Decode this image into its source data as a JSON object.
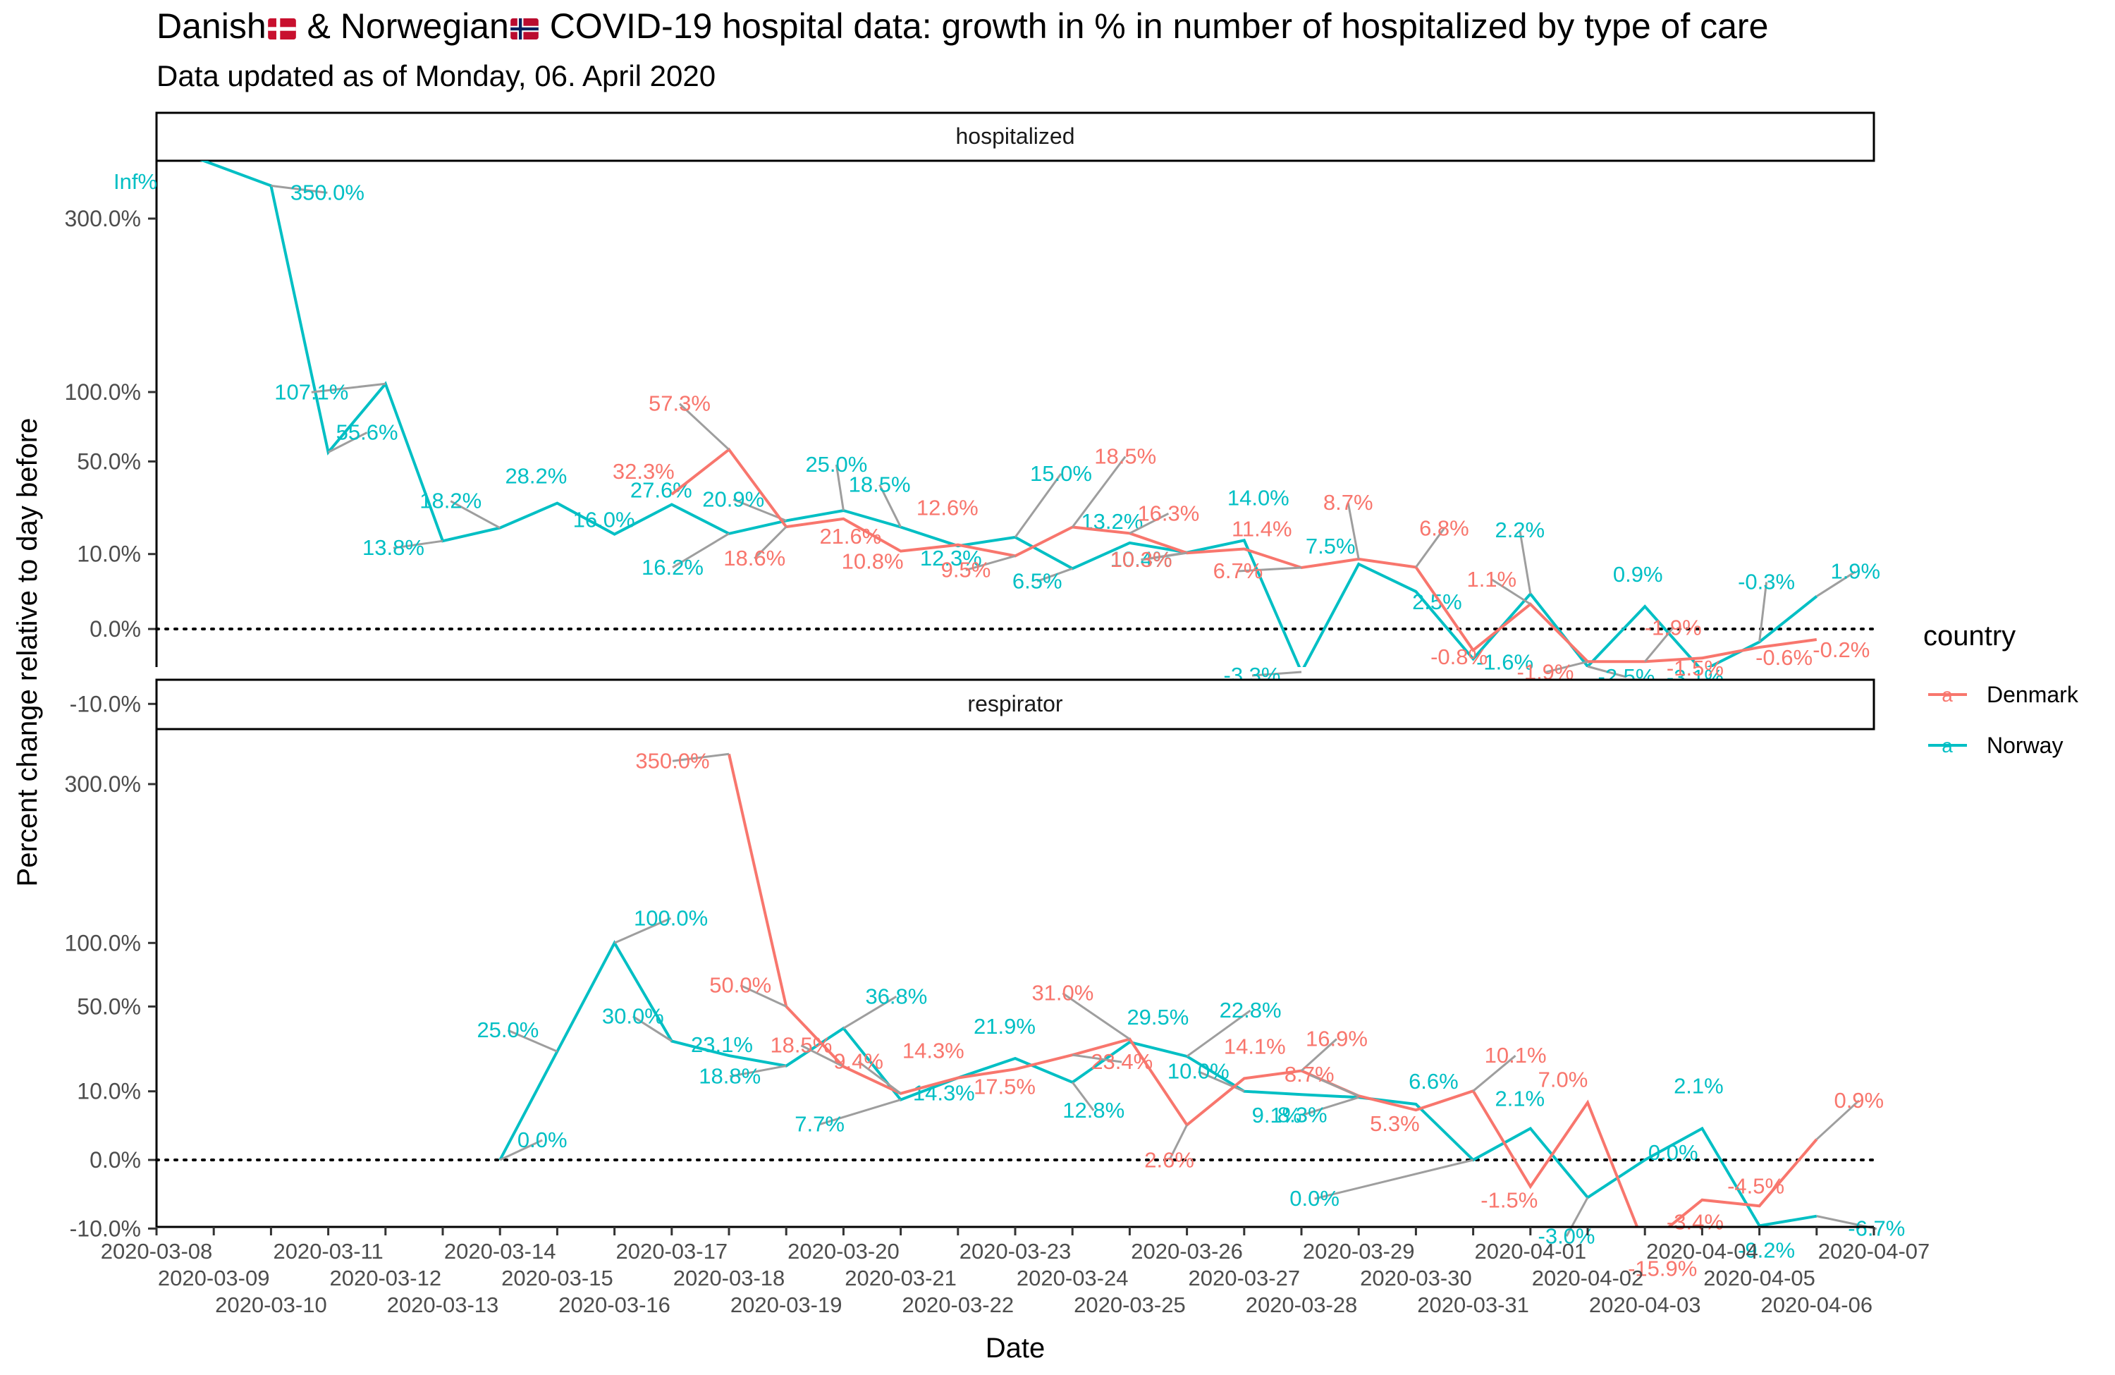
{
  "title_prefix": "Danish",
  "title_mid": " & Norwegian",
  "title_suffix": " COVID-19 hospital data: growth in % in number of hospitalized by type of care",
  "subtitle": "Data updated as of Monday, 06. April 2020",
  "colors": {
    "Denmark": "#F8766D",
    "Norway": "#00BFC4",
    "label_segment": "#9E9E9E"
  },
  "legend": {
    "title": "country",
    "placement": "right",
    "keys": [
      "Denmark",
      "Norway"
    ],
    "key_glyph": "a"
  },
  "chart_data": {
    "type": "line",
    "xlabel": "Date",
    "ylabel": "Percent change relative to day before",
    "y_scale": "sqrt (signed)",
    "y_ticks": [
      -10,
      0,
      10,
      50,
      100,
      300
    ],
    "y_tick_labels": [
      "-10.0%",
      "0.0%",
      "10.0%",
      "50.0%",
      "100.0%",
      "300.0%"
    ],
    "x_range": [
      "2020-03-08",
      "2020-04-07"
    ],
    "x_tick_labels": [
      "2020-03-08",
      "2020-03-09",
      "2020-03-10",
      "2020-03-11",
      "2020-03-12",
      "2020-03-13",
      "2020-03-14",
      "2020-03-15",
      "2020-03-16",
      "2020-03-17",
      "2020-03-18",
      "2020-03-19",
      "2020-03-20",
      "2020-03-21",
      "2020-03-22",
      "2020-03-23",
      "2020-03-24",
      "2020-03-25",
      "2020-03-26",
      "2020-03-27",
      "2020-03-28",
      "2020-03-29",
      "2020-03-30",
      "2020-03-31",
      "2020-04-01",
      "2020-04-02",
      "2020-04-03",
      "2020-04-04",
      "2020-04-05",
      "2020-04-06",
      "2020-04-07"
    ],
    "reference_line": 0,
    "facets": [
      {
        "name": "hospitalized",
        "series": [
          {
            "name": "Norway",
            "points": [
              {
                "x": "2020-03-08",
                "y": null,
                "label": "Inf%"
              },
              {
                "x": "2020-03-10",
                "y": 350.0,
                "label": "350.0%"
              },
              {
                "x": "2020-03-11",
                "y": 55.6,
                "label": "55.6%"
              },
              {
                "x": "2020-03-12",
                "y": 107.1,
                "label": "107.1%"
              },
              {
                "x": "2020-03-13",
                "y": 13.8,
                "label": "13.8%"
              },
              {
                "x": "2020-03-14",
                "y": 18.2,
                "label": "18.2%"
              },
              {
                "x": "2020-03-15",
                "y": 28.2,
                "label": "28.2%"
              },
              {
                "x": "2020-03-16",
                "y": 16.0,
                "label": "16.0%"
              },
              {
                "x": "2020-03-17",
                "y": 27.6,
                "label": "27.6%"
              },
              {
                "x": "2020-03-18",
                "y": 16.2,
                "label": "16.2%"
              },
              {
                "x": "2020-03-19",
                "y": 20.9,
                "label": "20.9%"
              },
              {
                "x": "2020-03-20",
                "y": 25.0,
                "label": "25.0%"
              },
              {
                "x": "2020-03-21",
                "y": 18.5,
                "label": "18.5%"
              },
              {
                "x": "2020-03-22",
                "y": 12.3,
                "label": "12.3%"
              },
              {
                "x": "2020-03-23",
                "y": 15.0,
                "label": "15.0%"
              },
              {
                "x": "2020-03-24",
                "y": 6.5,
                "label": "6.5%"
              },
              {
                "x": "2020-03-25",
                "y": 13.2,
                "label": "13.2%"
              },
              {
                "x": "2020-03-26",
                "y": 10.4,
                "label": "10.4%"
              },
              {
                "x": "2020-03-27",
                "y": 14.0,
                "label": "14.0%"
              },
              {
                "x": "2020-03-28",
                "y": -3.3,
                "label": "-3.3%"
              },
              {
                "x": "2020-03-29",
                "y": 7.5,
                "label": "7.5%"
              },
              {
                "x": "2020-03-30",
                "y": 2.5,
                "label": "2.5%"
              },
              {
                "x": "2020-03-31",
                "y": -1.6,
                "label": "-1.6%"
              },
              {
                "x": "2020-04-01",
                "y": 2.2,
                "label": "2.2%"
              },
              {
                "x": "2020-04-02",
                "y": -2.5,
                "label": "-2.5%"
              },
              {
                "x": "2020-04-03",
                "y": 0.9,
                "label": "0.9%"
              },
              {
                "x": "2020-04-04",
                "y": -3.1,
                "label": "-3.1%"
              },
              {
                "x": "2020-04-05",
                "y": -0.3,
                "label": "-0.3%"
              },
              {
                "x": "2020-04-06",
                "y": 1.9,
                "label": "1.9%"
              }
            ]
          },
          {
            "name": "Denmark",
            "points": [
              {
                "x": "2020-03-17",
                "y": 32.3,
                "label": "32.3%"
              },
              {
                "x": "2020-03-18",
                "y": 57.3,
                "label": "57.3%"
              },
              {
                "x": "2020-03-19",
                "y": 18.6,
                "label": "18.6%"
              },
              {
                "x": "2020-03-20",
                "y": 21.6,
                "label": "21.6%"
              },
              {
                "x": "2020-03-21",
                "y": 10.8,
                "label": "10.8%"
              },
              {
                "x": "2020-03-22",
                "y": 12.6,
                "label": "12.6%"
              },
              {
                "x": "2020-03-23",
                "y": 9.5,
                "label": "9.5%"
              },
              {
                "x": "2020-03-24",
                "y": 18.5,
                "label": "18.5%"
              },
              {
                "x": "2020-03-25",
                "y": 16.3,
                "label": "16.3%"
              },
              {
                "x": "2020-03-26",
                "y": 10.3,
                "label": "10.3%"
              },
              {
                "x": "2020-03-27",
                "y": 11.4,
                "label": "11.4%"
              },
              {
                "x": "2020-03-28",
                "y": 6.7,
                "label": "6.7%"
              },
              {
                "x": "2020-03-29",
                "y": 8.7,
                "label": "8.7%"
              },
              {
                "x": "2020-03-30",
                "y": 6.8,
                "label": "6.8%"
              },
              {
                "x": "2020-03-31",
                "y": -0.8,
                "label": "-0.8%"
              },
              {
                "x": "2020-04-01",
                "y": 1.1,
                "label": "1.1%"
              },
              {
                "x": "2020-04-02",
                "y": -1.9,
                "label": "-1.9%"
              },
              {
                "x": "2020-04-03",
                "y": -1.9,
                "label": "-1.9%"
              },
              {
                "x": "2020-04-04",
                "y": -1.5,
                "label": "-1.5%"
              },
              {
                "x": "2020-04-05",
                "y": -0.6,
                "label": "-0.6%"
              },
              {
                "x": "2020-04-06",
                "y": -0.2,
                "label": "-0.2%"
              }
            ]
          }
        ]
      },
      {
        "name": "respirator",
        "series": [
          {
            "name": "Norway",
            "points": [
              {
                "x": "2020-03-14",
                "y": 0.0,
                "label": "0.0%"
              },
              {
                "x": "2020-03-15",
                "y": 25.0,
                "label": "25.0%"
              },
              {
                "x": "2020-03-16",
                "y": 100.0,
                "label": "100.0%"
              },
              {
                "x": "2020-03-17",
                "y": 30.0,
                "label": "30.0%"
              },
              {
                "x": "2020-03-18",
                "y": 23.1,
                "label": "23.1%"
              },
              {
                "x": "2020-03-19",
                "y": 18.8,
                "label": "18.8%"
              },
              {
                "x": "2020-03-20",
                "y": 36.8,
                "label": "36.8%"
              },
              {
                "x": "2020-03-21",
                "y": 7.7,
                "label": "7.7%"
              },
              {
                "x": "2020-03-22",
                "y": 14.3,
                "label": "14.3%"
              },
              {
                "x": "2020-03-23",
                "y": 21.9,
                "label": "21.9%"
              },
              {
                "x": "2020-03-24",
                "y": 12.8,
                "label": "12.8%"
              },
              {
                "x": "2020-03-25",
                "y": 29.5,
                "label": "29.5%"
              },
              {
                "x": "2020-03-26",
                "y": 22.8,
                "label": "22.8%"
              },
              {
                "x": "2020-03-27",
                "y": 10.0,
                "label": "10.0%"
              },
              {
                "x": "2020-03-28",
                "y": 9.1,
                "label": "9.1%"
              },
              {
                "x": "2020-03-29",
                "y": 8.3,
                "label": "8.3%"
              },
              {
                "x": "2020-03-30",
                "y": 6.6,
                "label": "6.6%"
              },
              {
                "x": "2020-03-31",
                "y": 0.0,
                "label": "0.0%"
              },
              {
                "x": "2020-04-01",
                "y": 2.1,
                "label": "2.1%"
              },
              {
                "x": "2020-04-02",
                "y": -3.0,
                "label": "-3.0%"
              },
              {
                "x": "2020-04-03",
                "y": 0.0,
                "label": "0.0%"
              },
              {
                "x": "2020-04-04",
                "y": 2.1,
                "label": "2.1%"
              },
              {
                "x": "2020-04-05",
                "y": -9.2,
                "label": "-9.2%"
              },
              {
                "x": "2020-04-06",
                "y": -6.7,
                "label": "-6.7%"
              }
            ]
          },
          {
            "name": "Denmark",
            "points": [
              {
                "x": "2020-03-18",
                "y": 350.0,
                "label": "350.0%"
              },
              {
                "x": "2020-03-19",
                "y": 50.0,
                "label": "50.0%"
              },
              {
                "x": "2020-03-20",
                "y": 18.5,
                "label": "18.5%"
              },
              {
                "x": "2020-03-21",
                "y": 9.4,
                "label": "9.4%"
              },
              {
                "x": "2020-03-22",
                "y": 14.3,
                "label": "14.3%"
              },
              {
                "x": "2020-03-23",
                "y": 17.5,
                "label": "17.5%"
              },
              {
                "x": "2020-03-24",
                "y": 23.4,
                "label": "23.4%"
              },
              {
                "x": "2020-03-25",
                "y": 31.0,
                "label": "31.0%"
              },
              {
                "x": "2020-03-26",
                "y": 2.6,
                "label": "2.6%"
              },
              {
                "x": "2020-03-27",
                "y": 14.1,
                "label": "14.1%"
              },
              {
                "x": "2020-03-28",
                "y": 16.9,
                "label": "16.9%"
              },
              {
                "x": "2020-03-29",
                "y": 8.7,
                "label": "8.7%"
              },
              {
                "x": "2020-03-30",
                "y": 5.3,
                "label": "5.3%"
              },
              {
                "x": "2020-03-31",
                "y": 10.1,
                "label": "10.1%"
              },
              {
                "x": "2020-04-01",
                "y": -1.5,
                "label": "-1.5%"
              },
              {
                "x": "2020-04-02",
                "y": 7.0,
                "label": "7.0%"
              },
              {
                "x": "2020-04-03",
                "y": -15.9,
                "label": "-15.9%"
              },
              {
                "x": "2020-04-04",
                "y": -3.4,
                "label": "-3.4%"
              },
              {
                "x": "2020-04-05",
                "y": -4.5,
                "label": "-4.5%"
              },
              {
                "x": "2020-04-06",
                "y": 0.9,
                "label": "0.9%"
              }
            ]
          }
        ]
      }
    ]
  }
}
